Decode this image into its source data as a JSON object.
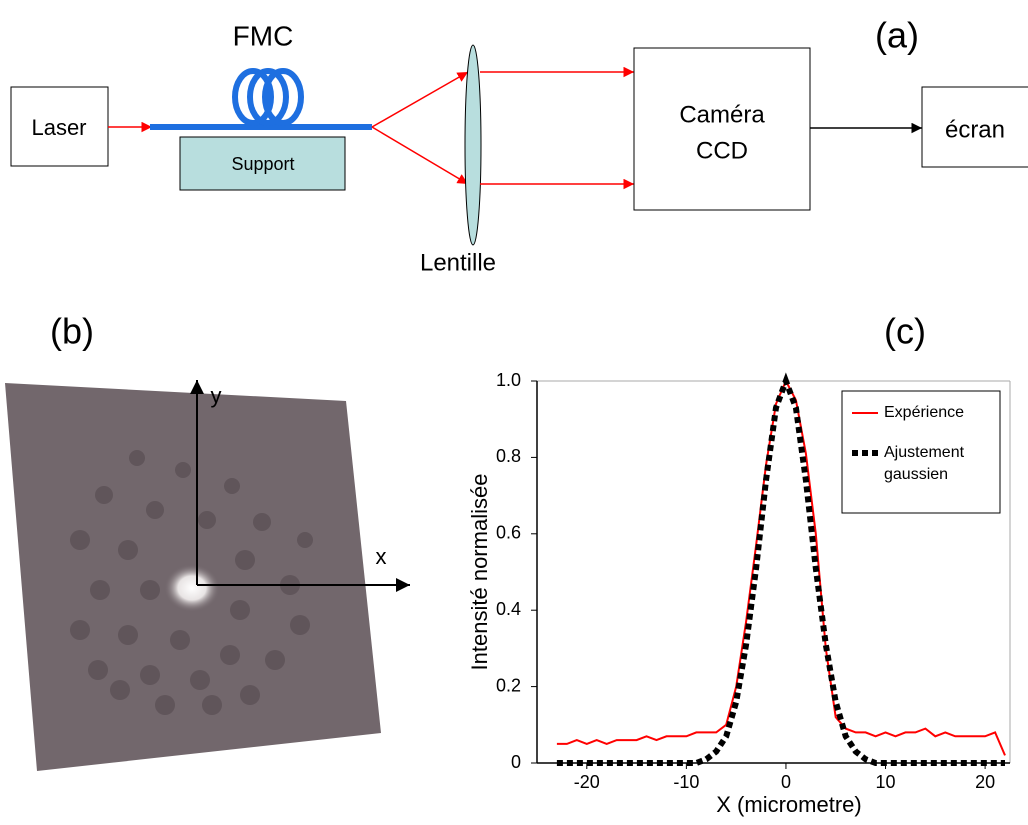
{
  "figure": {
    "labels": [
      "(a)",
      "(b)",
      "(c)"
    ]
  },
  "diagram": {
    "laser": "Laser",
    "fiber": "FMC",
    "support": "Support",
    "lens": "Lentille",
    "camera": [
      "Caméra",
      "CCD"
    ],
    "screen": "écran"
  },
  "image": {
    "x_axis": "x",
    "y_axis": "y"
  },
  "chart_data": {
    "type": "line",
    "x_label": "X (micrometre)",
    "y_label": "Intensité normalisée",
    "x": [
      -23,
      -22,
      -21,
      -20,
      -19,
      -18,
      -17,
      -16,
      -15,
      -14,
      -13,
      -12,
      -11,
      -10,
      -9,
      -8,
      -7,
      -6,
      -5,
      -4,
      -3,
      -2,
      -1,
      0,
      1,
      2,
      3,
      4,
      5,
      6,
      7,
      8,
      9,
      10,
      11,
      12,
      13,
      14,
      15,
      16,
      17,
      18,
      19,
      20,
      21,
      22
    ],
    "series": [
      {
        "name": "Expérience",
        "color": "#ff0000",
        "style": "solid",
        "values": [
          0.05,
          0.05,
          0.06,
          0.05,
          0.06,
          0.05,
          0.06,
          0.06,
          0.06,
          0.07,
          0.06,
          0.07,
          0.07,
          0.07,
          0.08,
          0.08,
          0.08,
          0.1,
          0.2,
          0.37,
          0.57,
          0.78,
          0.94,
          1.0,
          0.95,
          0.81,
          0.6,
          0.3,
          0.12,
          0.09,
          0.08,
          0.08,
          0.07,
          0.08,
          0.07,
          0.08,
          0.08,
          0.09,
          0.07,
          0.08,
          0.07,
          0.07,
          0.07,
          0.07,
          0.08,
          0.02
        ]
      },
      {
        "name": "Ajustement gaussien",
        "color": "#000000",
        "style": "dashed",
        "values": [
          0,
          0,
          0,
          0,
          0,
          0,
          0,
          0,
          0,
          0,
          0,
          0,
          0,
          0,
          0,
          0.01,
          0.03,
          0.07,
          0.16,
          0.31,
          0.51,
          0.74,
          0.93,
          1.0,
          0.93,
          0.74,
          0.51,
          0.31,
          0.16,
          0.07,
          0.03,
          0.01,
          0,
          0,
          0,
          0,
          0,
          0,
          0,
          0,
          0,
          0,
          0,
          0,
          0,
          0
        ]
      }
    ],
    "xlim": [
      -25,
      22.5
    ],
    "ylim": [
      0,
      1
    ],
    "xticks": [
      -20,
      -10,
      0,
      10,
      20
    ],
    "yticks": [
      0,
      0.2,
      0.4,
      0.6,
      0.8,
      {
        "value": 1,
        "label": "1.0"
      }
    ],
    "legend": "upper right"
  }
}
